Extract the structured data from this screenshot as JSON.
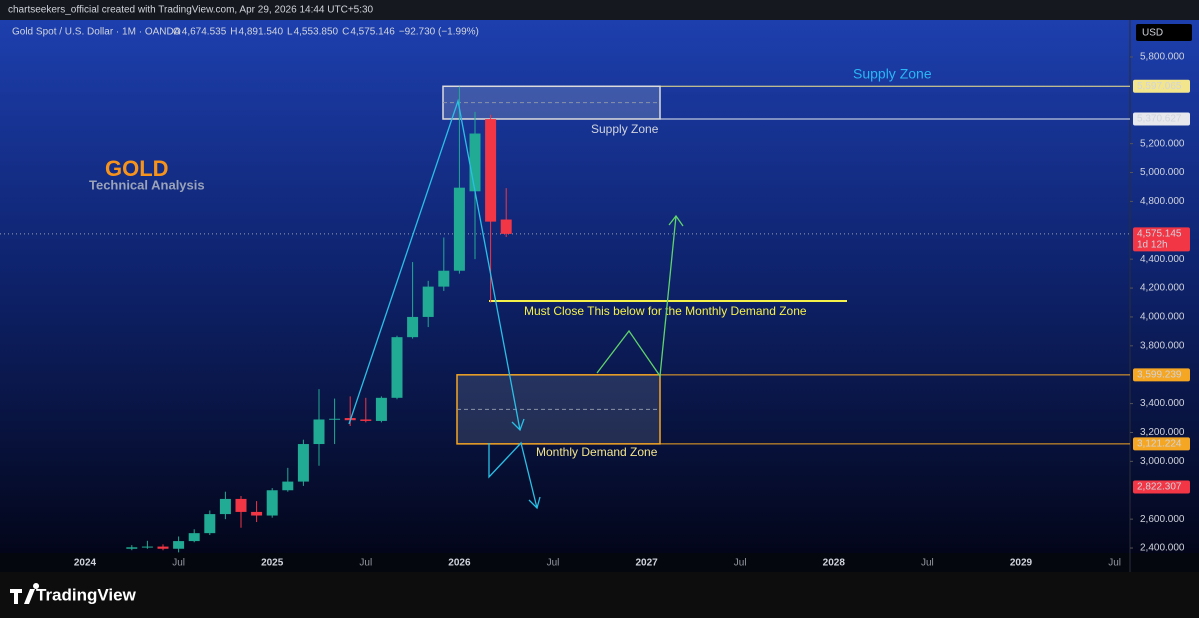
{
  "chart_data": {
    "type": "candlestick",
    "credit": "chartseekers_official created with TradingView.com, Apr 29, 2026 14:44 UTC+5:30",
    "title": "Gold Spot / U.S. Dollar · 1M · OANDA",
    "legend_ohlc": [
      {
        "key": "O",
        "value": "4,674.535"
      },
      {
        "key": "H",
        "value": "4,891.540"
      },
      {
        "key": "L",
        "value": "4,553.850"
      },
      {
        "key": "C",
        "value": "4,575.146"
      }
    ],
    "change": "−92.730 (−1.99%)",
    "currency": "USD",
    "brand_title": "GOLD",
    "brand_subtitle": "Technical Analysis",
    "supply_zone_title": "Supply Zone",
    "supply_zone_label": "Supply Zone",
    "demand_zone_label": "Monthly Demand Zone",
    "note": "Must Close This below for the Monthly Demand Zone",
    "footer": "TradingView",
    "up_color": "#22ab94",
    "down_color": "#f23645",
    "categories": [
      "2024",
      null,
      null,
      null,
      null,
      null,
      "Jul",
      null,
      null,
      null,
      null,
      null,
      "2025",
      null,
      null,
      null,
      null,
      null,
      "Jul",
      null,
      null,
      null,
      null,
      null,
      "2026",
      null,
      null,
      null,
      null,
      null,
      "Jul",
      null,
      null,
      null,
      null,
      null,
      "2027",
      null,
      null,
      null,
      null,
      null,
      "Jul",
      null,
      null,
      null,
      null,
      null,
      "2028",
      null,
      null,
      null,
      null,
      null,
      "Jul",
      null,
      null,
      null,
      null,
      null,
      "2029",
      null,
      null,
      null,
      null,
      null,
      "Jul"
    ],
    "open": [
      null,
      null,
      null,
      2395,
      2405,
      2410,
      2395,
      2448,
      2503,
      2635,
      2740,
      2650,
      2625,
      2800,
      2860,
      3120,
      3290,
      3300,
      3290,
      3280,
      3440,
      3860,
      4000,
      4210,
      4320,
      4870,
      5370,
      4674.535,
      null,
      null,
      null,
      null,
      null,
      null,
      null,
      null,
      null,
      null,
      null,
      null,
      null,
      null,
      null,
      null,
      null,
      null,
      null,
      null,
      null,
      null,
      null,
      null,
      null,
      null,
      null,
      null,
      null,
      null,
      null,
      null,
      null,
      null,
      null,
      null,
      null,
      null,
      null
    ],
    "high": [
      null,
      null,
      null,
      2420,
      2450,
      2425,
      2480,
      2530,
      2660,
      2790,
      2760,
      2725,
      2815,
      2955,
      3150,
      3500,
      3435,
      3450,
      3440,
      3450,
      3870,
      4380,
      4250,
      4550,
      5595,
      5420,
      5400,
      4891.54,
      null,
      null,
      null,
      null,
      null,
      null,
      null,
      null,
      null,
      null,
      null,
      null,
      null,
      null,
      null,
      null,
      null,
      null,
      null,
      null,
      null,
      null,
      null,
      null,
      null,
      null,
      null,
      null,
      null,
      null,
      null,
      null,
      null,
      null,
      null,
      null,
      null,
      null,
      null
    ],
    "low": [
      null,
      null,
      null,
      2385,
      2395,
      2385,
      2370,
      2440,
      2490,
      2600,
      2540,
      2580,
      2610,
      2790,
      2830,
      2970,
      3120,
      3245,
      3270,
      3270,
      3430,
      3850,
      3930,
      4180,
      4300,
      4400,
      4100,
      4553.85,
      null,
      null,
      null,
      null,
      null,
      null,
      null,
      null,
      null,
      null,
      null,
      null,
      null,
      null,
      null,
      null,
      null,
      null,
      null,
      null,
      null,
      null,
      null,
      null,
      null,
      null,
      null,
      null,
      null,
      null,
      null,
      null,
      null,
      null,
      null,
      null,
      null,
      null,
      null
    ],
    "close": [
      null,
      null,
      null,
      2405,
      2410,
      2395,
      2448,
      2503,
      2635,
      2740,
      2650,
      2625,
      2800,
      2860,
      3120,
      3290,
      3295,
      3285,
      3280,
      3440,
      3860,
      4000,
      4210,
      4320,
      4895,
      5270,
      4660,
      4575.146,
      null,
      null,
      null,
      null,
      null,
      null,
      null,
      null,
      null,
      null,
      null,
      null,
      null,
      null,
      null,
      null,
      null,
      null,
      null,
      null,
      null,
      null,
      null,
      null,
      null,
      null,
      null,
      null,
      null,
      null,
      null,
      null,
      null,
      null,
      null,
      null,
      null,
      null,
      null
    ],
    "ylim": [
      2234,
      6056
    ],
    "yticks": [
      {
        "value": 5800,
        "label": "5,800.000"
      },
      {
        "value": 5200,
        "label": "5,200.000"
      },
      {
        "value": 5000,
        "label": "5,000.000"
      },
      {
        "value": 4800,
        "label": "4,800.000"
      },
      {
        "value": 4400,
        "label": "4,400.000"
      },
      {
        "value": 4200,
        "label": "4,200.000"
      },
      {
        "value": 4000,
        "label": "4,000.000"
      },
      {
        "value": 3800,
        "label": "3,800.000"
      },
      {
        "value": 3400,
        "label": "3,400.000"
      },
      {
        "value": 3200,
        "label": "3,200.000"
      },
      {
        "value": 3000,
        "label": "3,000.000"
      },
      {
        "value": 2600,
        "label": "2,600.000"
      },
      {
        "value": 2400,
        "label": "2,400.000"
      }
    ],
    "levels": [
      {
        "value": 5597.065,
        "label": "5,597.065",
        "color": "#f3e58c"
      },
      {
        "value": 5370.627,
        "label": "5,370.627",
        "color": "#e6e8ee"
      },
      {
        "value": 4575.145,
        "label": "4,575.145",
        "color": "#f23645",
        "countdown": "1d 12h"
      },
      {
        "value": 3599.239,
        "label": "3,599.239",
        "color": "#f5a623"
      },
      {
        "value": 3121.224,
        "label": "3,121.224",
        "color": "#f5a623"
      },
      {
        "value": 2822.307,
        "label": "2,822.307",
        "color": "#f23645"
      }
    ]
  }
}
